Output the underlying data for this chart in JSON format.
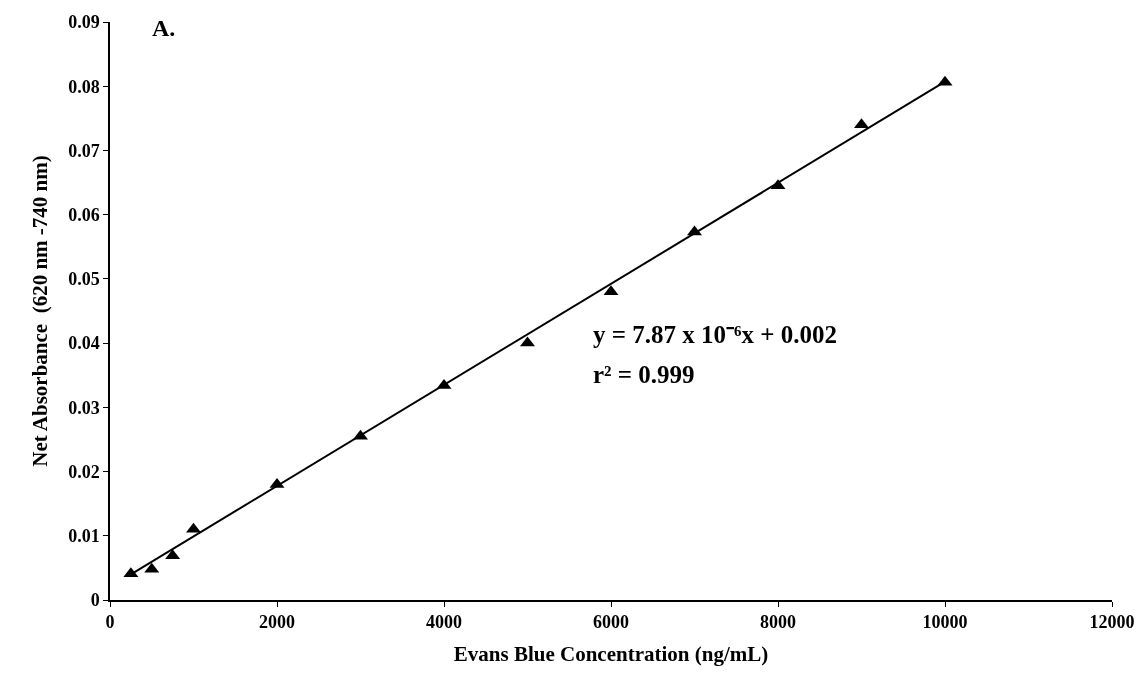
{
  "chart_data": {
    "type": "scatter",
    "xlabel": "Evans Blue Concentration (ng/mL)",
    "ylabel": "Net Absorbance  (620 nm -740 nm)",
    "annotations": [
      "A.",
      "y = 7.87 x 10⁻⁶x + 0.002",
      "r² = 0.999"
    ],
    "x": [
      250,
      500,
      750,
      1000,
      2000,
      3000,
      4000,
      5000,
      6000,
      7000,
      8000,
      9000,
      10000
    ],
    "series": [
      {
        "color": "#000000",
        "marker": "triangle",
        "values": [
          0.0041,
          0.0048,
          0.0069,
          0.011,
          0.018,
          0.0255,
          0.0334,
          0.04,
          0.048,
          0.0573,
          0.0645,
          0.074,
          0.0806
        ]
      },
      {
        "type": "line",
        "color": "#000000",
        "marker": "none",
        "line_style": "solid",
        "x": [
          250,
          10000
        ],
        "values": [
          0.004,
          0.0807
        ]
      }
    ],
    "xlim": [
      0,
      12000
    ],
    "xticks": [
      0,
      2000,
      4000,
      6000,
      8000,
      10000,
      12000
    ],
    "ylim": [
      0,
      0.09
    ],
    "yticks": [
      0,
      0.01,
      0.02,
      0.03,
      0.04,
      0.05,
      0.06,
      0.07,
      0.08,
      0.09
    ],
    "grid": false,
    "legend": false
  }
}
